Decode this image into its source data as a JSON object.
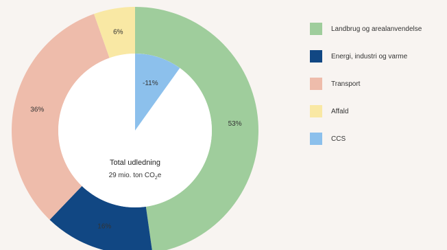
{
  "chart_data": {
    "type": "pie",
    "donut": true,
    "legend_position": "right",
    "center_label": {
      "title": "Total udledning",
      "subtitle_prefix": "29 mio. ton CO",
      "subtitle_sub": "2",
      "subtitle_suffix": "e"
    },
    "slices": [
      {
        "name": "Landbrug og arealanvendelse",
        "value": 53,
        "label": "53%",
        "color": "#9fcd9c"
      },
      {
        "name": "Energi, industri og varme",
        "value": 16,
        "label": "16%",
        "color": "#114783"
      },
      {
        "name": "Transport",
        "value": 36,
        "label": "36%",
        "color": "#eebcab"
      },
      {
        "name": "Affald",
        "value": 6,
        "label": "6%",
        "color": "#f9e8a4"
      }
    ],
    "ccs": {
      "name": "CCS",
      "value": -11,
      "label": "-11%",
      "color": "#8cc0ec"
    },
    "legend": [
      {
        "name": "Landbrug og arealanvendelse",
        "color": "#9fcd9c"
      },
      {
        "name": "Energi, industri og varme",
        "color": "#114783"
      },
      {
        "name": "Transport",
        "color": "#eebcab"
      },
      {
        "name": "Affald",
        "color": "#f9e8a4"
      },
      {
        "name": "CCS",
        "color": "#8cc0ec"
      }
    ]
  }
}
